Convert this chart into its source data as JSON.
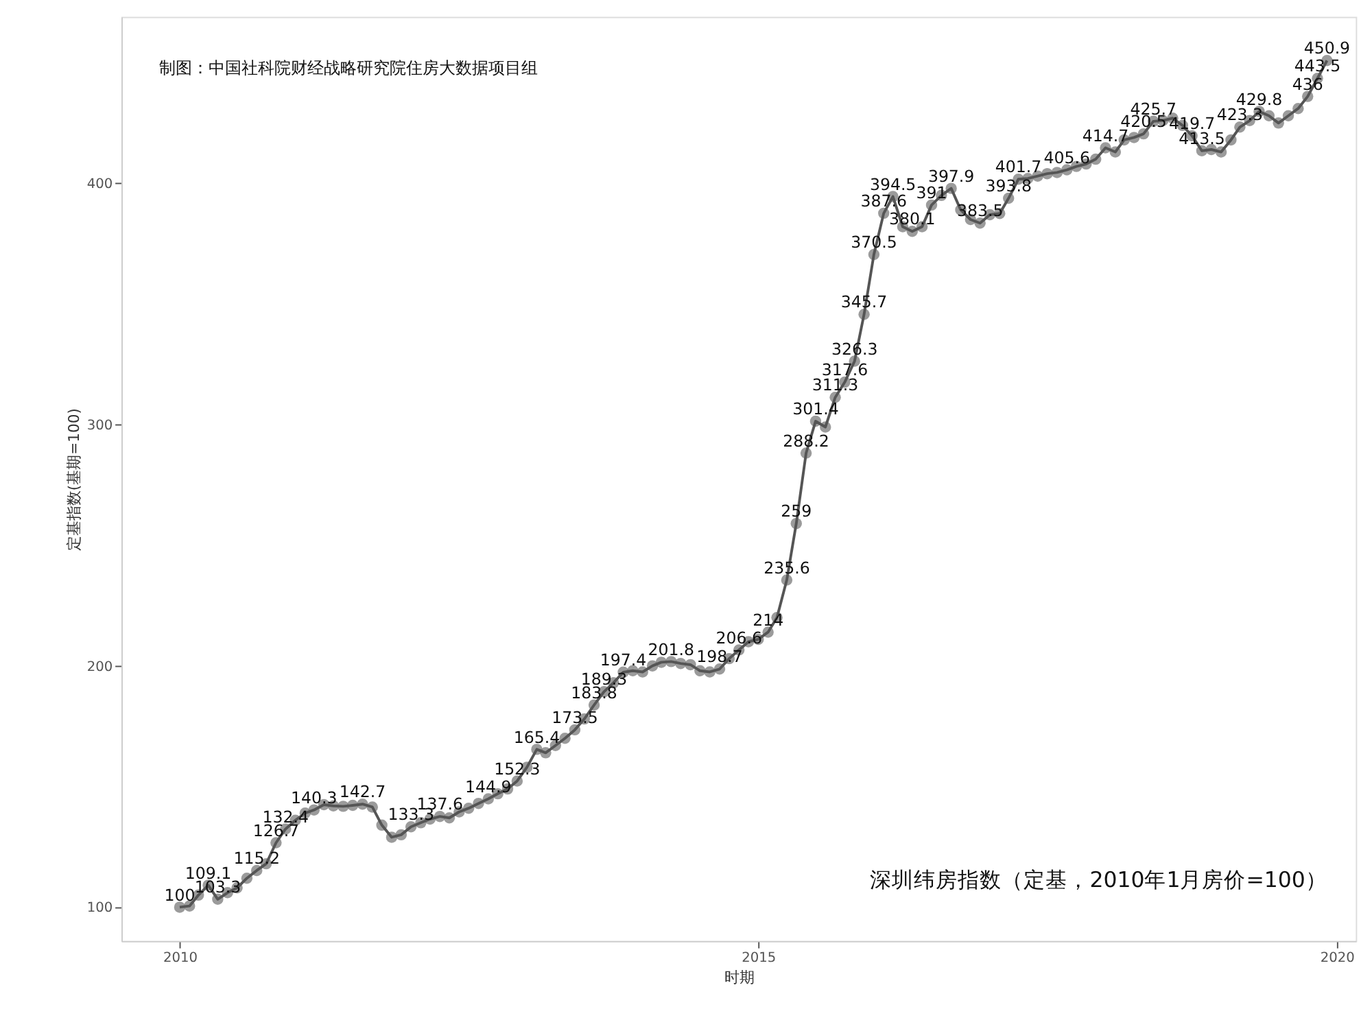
{
  "chart_data": {
    "type": "line",
    "title": "深圳纬房指数（定基，2010年1月房价=100）",
    "annotations": [
      "制图：中国社科院财经战略研究院住房大数据项目组"
    ],
    "xlabel": "时期",
    "ylabel": "定基指数(基期=100)",
    "xlim": [
      "2009-07",
      "2020-03"
    ],
    "xticks": [
      {
        "value": "2010",
        "label": "2010"
      },
      {
        "value": "2015",
        "label": "2015"
      },
      {
        "value": "2020",
        "label": "2020"
      }
    ],
    "ylim": [
      86,
      469
    ],
    "yticks": [
      100,
      200,
      300,
      400
    ],
    "grid": false,
    "marker": "circle",
    "line_style": "solid",
    "x": [
      "2010-01",
      "2010-02",
      "2010-03",
      "2010-04",
      "2010-05",
      "2010-06",
      "2010-07",
      "2010-08",
      "2010-09",
      "2010-10",
      "2010-11",
      "2010-12",
      "2011-01",
      "2011-02",
      "2011-03",
      "2011-04",
      "2011-05",
      "2011-06",
      "2011-07",
      "2011-08",
      "2011-09",
      "2011-10",
      "2011-11",
      "2011-12",
      "2012-01",
      "2012-02",
      "2012-03",
      "2012-04",
      "2012-05",
      "2012-06",
      "2012-07",
      "2012-08",
      "2012-09",
      "2012-10",
      "2012-11",
      "2012-12",
      "2013-01",
      "2013-02",
      "2013-03",
      "2013-04",
      "2013-05",
      "2013-06",
      "2013-07",
      "2013-08",
      "2013-09",
      "2013-10",
      "2013-11",
      "2013-12",
      "2014-01",
      "2014-02",
      "2014-03",
      "2014-04",
      "2014-05",
      "2014-06",
      "2014-07",
      "2014-08",
      "2014-09",
      "2014-10",
      "2014-11",
      "2014-12",
      "2015-01",
      "2015-02",
      "2015-03",
      "2015-04",
      "2015-05",
      "2015-06",
      "2015-07",
      "2015-08",
      "2015-09",
      "2015-10",
      "2015-11",
      "2015-12",
      "2016-01",
      "2016-02",
      "2016-03",
      "2016-04",
      "2016-05",
      "2016-06",
      "2016-07",
      "2016-08",
      "2016-09",
      "2016-10",
      "2016-11",
      "2016-12",
      "2017-01",
      "2017-02",
      "2017-03",
      "2017-04",
      "2017-05",
      "2017-06",
      "2017-07",
      "2017-08",
      "2017-09",
      "2017-10",
      "2017-11",
      "2017-12",
      "2018-01",
      "2018-02",
      "2018-03",
      "2018-04",
      "2018-05",
      "2018-06",
      "2018-07",
      "2018-08",
      "2018-09",
      "2018-10",
      "2018-11",
      "2018-12",
      "2019-01",
      "2019-02",
      "2019-03",
      "2019-04",
      "2019-05",
      "2019-06",
      "2019-07",
      "2019-08",
      "2019-09",
      "2019-10",
      "2019-11",
      "2019-12"
    ],
    "series": [
      {
        "color": "#555555",
        "values": [
          100,
          100.5,
          105,
          109.1,
          103.3,
          106,
          108,
          112,
          115.2,
          118,
          126.7,
          132.4,
          136,
          139,
          140.3,
          142.5,
          142,
          141.8,
          142.2,
          142.7,
          141.5,
          134,
          129,
          130,
          133.3,
          135,
          136.5,
          137.6,
          137,
          139.5,
          141,
          143,
          144.9,
          147,
          149,
          152.3,
          158,
          165.4,
          164,
          167,
          170,
          173.5,
          178,
          183.8,
          189.3,
          193,
          197.4,
          198,
          197.5,
          200,
          201.5,
          201.8,
          201,
          200.5,
          198,
          197.5,
          198.7,
          203,
          206.6,
          210,
          211,
          214,
          220,
          235.6,
          259,
          288.2,
          301.4,
          299,
          311.3,
          317.6,
          326.3,
          345.7,
          370.5,
          387.6,
          394.5,
          382,
          380.1,
          382,
          391,
          395,
          397.9,
          389,
          385,
          383.5,
          387,
          387.5,
          393.8,
          401.7,
          402,
          403,
          404,
          404.5,
          405.6,
          407,
          408,
          410,
          414.7,
          413,
          418,
          419,
          420.5,
          425.7,
          426,
          427,
          424,
          419.7,
          413.5,
          414,
          413,
          418,
          423.3,
          426,
          429.8,
          428,
          425,
          428,
          431,
          436,
          443.5,
          450.9
        ],
        "value_labels": [
          "100",
          null,
          null,
          "109.1",
          "103.3",
          null,
          null,
          null,
          "115.2",
          null,
          "126.7",
          "132.4",
          null,
          null,
          "140.3",
          null,
          null,
          null,
          null,
          "142.7",
          null,
          null,
          null,
          null,
          "133.3",
          null,
          null,
          "137.6",
          null,
          null,
          null,
          null,
          "144.9",
          null,
          null,
          "152.3",
          null,
          "165.4",
          null,
          null,
          null,
          "173.5",
          null,
          "183.8",
          "189.3",
          null,
          "197.4",
          null,
          null,
          null,
          null,
          "201.8",
          null,
          null,
          null,
          null,
          "198.7",
          null,
          "206.6",
          null,
          null,
          "214",
          null,
          "235.6",
          "259",
          "288.2",
          "301.4",
          null,
          "311.3",
          "317.6",
          "326.3",
          "345.7",
          "370.5",
          "387.6",
          "394.5",
          null,
          "380.1",
          null,
          "391",
          null,
          "397.9",
          null,
          null,
          "383.5",
          null,
          null,
          "393.8",
          "401.7",
          null,
          null,
          null,
          null,
          "405.6",
          null,
          null,
          null,
          "414.7",
          null,
          null,
          null,
          "420.5",
          "425.7",
          null,
          null,
          null,
          "419.7",
          "413.5",
          null,
          null,
          null,
          "423.3",
          null,
          "429.8",
          null,
          null,
          null,
          null,
          "436",
          "443.5",
          "450.9"
        ]
      }
    ]
  }
}
